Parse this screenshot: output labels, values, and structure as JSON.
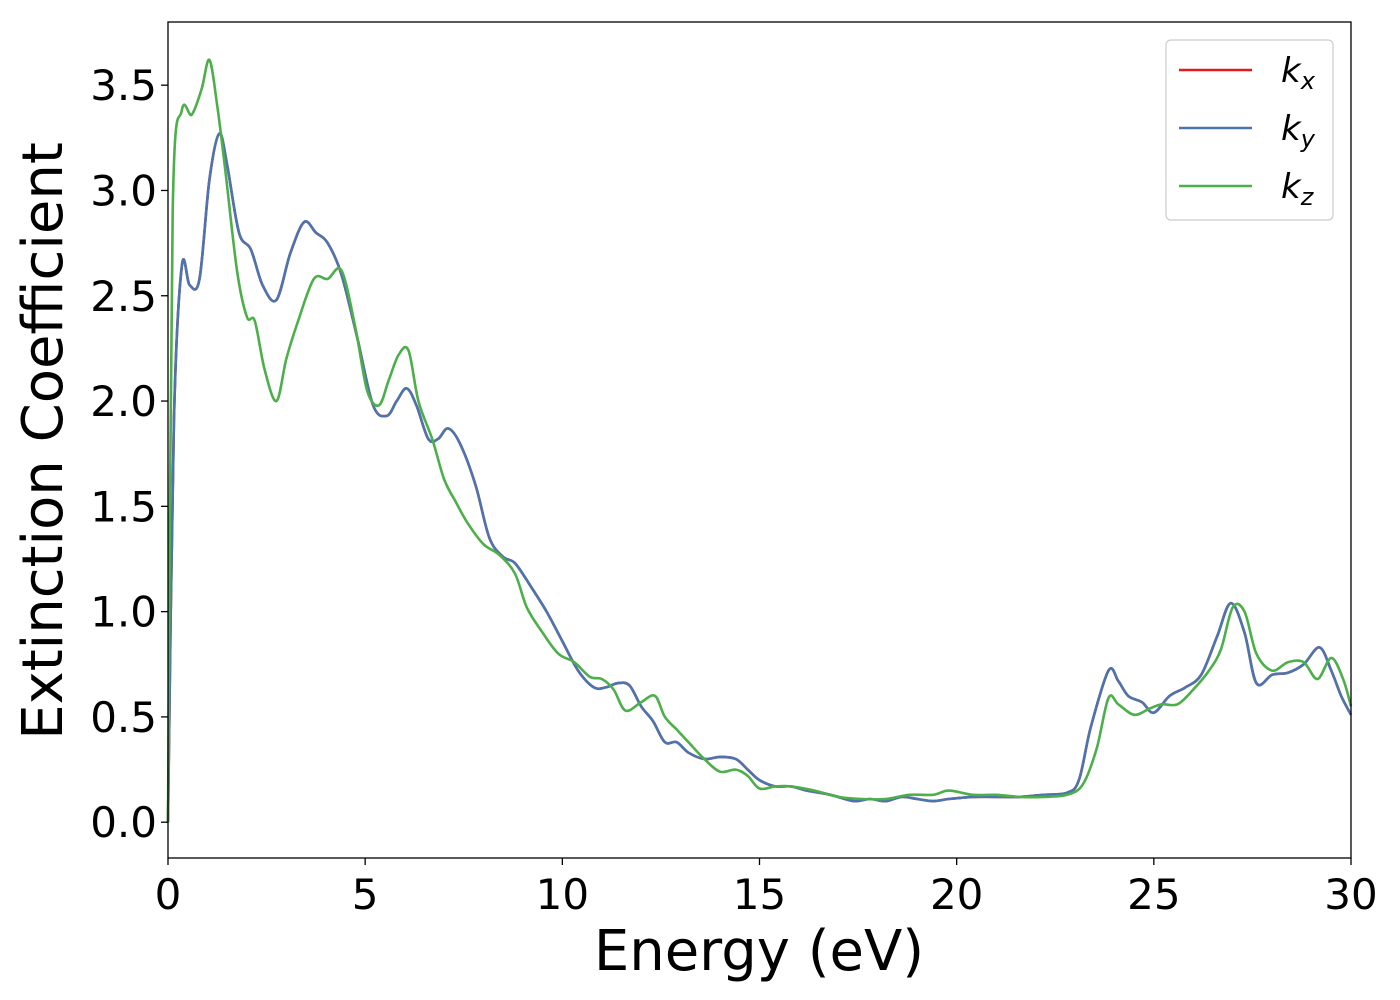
{
  "chart_data": {
    "type": "line",
    "title": "",
    "xlabel": "Energy (eV)",
    "ylabel": "Extinction Coefficient",
    "xlim": [
      0,
      30
    ],
    "ylim": [
      -0.17,
      3.8
    ],
    "xticks": [
      0,
      5,
      10,
      15,
      20,
      25,
      30
    ],
    "xtick_labels": [
      "0",
      "5",
      "10",
      "15",
      "20",
      "25",
      "30"
    ],
    "yticks": [
      0.0,
      0.5,
      1.0,
      1.5,
      2.0,
      2.5,
      3.0,
      3.5
    ],
    "ytick_labels": [
      "0.0",
      "0.5",
      "1.0",
      "1.5",
      "2.0",
      "2.5",
      "3.0",
      "3.5"
    ],
    "grid": false,
    "legend_position": "top-right",
    "series": [
      {
        "name": "k_x",
        "symbol": "k",
        "subscript": "x",
        "color": "#e41a1c",
        "x": [
          0,
          0.15,
          0.35,
          0.55,
          0.8,
          1.05,
          1.3,
          1.5,
          1.8,
          2.1,
          2.4,
          2.75,
          3.1,
          3.45,
          3.75,
          4.05,
          4.4,
          4.8,
          5.2,
          5.55,
          5.8,
          6.05,
          6.3,
          6.6,
          6.85,
          7.1,
          7.4,
          7.8,
          8.15,
          8.5,
          8.8,
          9.2,
          9.6,
          10,
          10.4,
          10.8,
          11.1,
          11.4,
          11.7,
          12,
          12.3,
          12.6,
          12.9,
          13.2,
          13.6,
          14,
          14.4,
          14.7,
          15,
          15.4,
          15.8,
          16.2,
          16.8,
          17.4,
          17.8,
          18.2,
          18.6,
          19,
          19.4,
          19.8,
          20.4,
          21,
          21.6,
          22.2,
          22.8,
          23.1,
          23.4,
          23.85,
          24.1,
          24.35,
          24.7,
          25,
          25.4,
          25.8,
          26.2,
          26.6,
          26.95,
          27.3,
          27.6,
          28,
          28.4,
          28.8,
          29.2,
          29.5,
          29.75,
          30
        ],
        "values": [
          0,
          1.9,
          2.64,
          2.55,
          2.58,
          3.05,
          3.27,
          3.12,
          2.8,
          2.72,
          2.55,
          2.48,
          2.7,
          2.85,
          2.8,
          2.75,
          2.6,
          2.3,
          1.98,
          1.93,
          2.0,
          2.06,
          1.98,
          1.82,
          1.82,
          1.87,
          1.8,
          1.6,
          1.35,
          1.26,
          1.23,
          1.12,
          1.0,
          0.86,
          0.72,
          0.64,
          0.64,
          0.66,
          0.65,
          0.55,
          0.48,
          0.38,
          0.38,
          0.33,
          0.3,
          0.31,
          0.3,
          0.25,
          0.2,
          0.17,
          0.17,
          0.15,
          0.13,
          0.1,
          0.11,
          0.1,
          0.12,
          0.11,
          0.1,
          0.11,
          0.12,
          0.12,
          0.12,
          0.13,
          0.14,
          0.2,
          0.45,
          0.72,
          0.67,
          0.6,
          0.57,
          0.52,
          0.6,
          0.64,
          0.7,
          0.88,
          1.04,
          0.9,
          0.66,
          0.7,
          0.71,
          0.75,
          0.83,
          0.72,
          0.6,
          0.51
        ]
      },
      {
        "name": "k_y",
        "symbol": "k",
        "subscript": "y",
        "color": "#4a75b0",
        "x": [
          0,
          0.15,
          0.35,
          0.55,
          0.8,
          1.05,
          1.3,
          1.5,
          1.8,
          2.1,
          2.4,
          2.75,
          3.1,
          3.45,
          3.75,
          4.05,
          4.4,
          4.8,
          5.2,
          5.55,
          5.8,
          6.05,
          6.3,
          6.6,
          6.85,
          7.1,
          7.4,
          7.8,
          8.15,
          8.5,
          8.8,
          9.2,
          9.6,
          10,
          10.4,
          10.8,
          11.1,
          11.4,
          11.7,
          12,
          12.3,
          12.6,
          12.9,
          13.2,
          13.6,
          14,
          14.4,
          14.7,
          15,
          15.4,
          15.8,
          16.2,
          16.8,
          17.4,
          17.8,
          18.2,
          18.6,
          19,
          19.4,
          19.8,
          20.4,
          21,
          21.6,
          22.2,
          22.8,
          23.1,
          23.4,
          23.85,
          24.1,
          24.35,
          24.7,
          25,
          25.4,
          25.8,
          26.2,
          26.6,
          26.95,
          27.3,
          27.6,
          28,
          28.4,
          28.8,
          29.2,
          29.5,
          29.75,
          30
        ],
        "values": [
          0,
          1.9,
          2.64,
          2.55,
          2.58,
          3.05,
          3.27,
          3.12,
          2.8,
          2.72,
          2.55,
          2.48,
          2.7,
          2.85,
          2.8,
          2.75,
          2.6,
          2.3,
          1.98,
          1.93,
          2.0,
          2.06,
          1.98,
          1.82,
          1.82,
          1.87,
          1.8,
          1.6,
          1.35,
          1.26,
          1.23,
          1.12,
          1.0,
          0.86,
          0.72,
          0.64,
          0.64,
          0.66,
          0.65,
          0.55,
          0.48,
          0.38,
          0.38,
          0.33,
          0.3,
          0.31,
          0.3,
          0.25,
          0.2,
          0.17,
          0.17,
          0.15,
          0.13,
          0.1,
          0.11,
          0.1,
          0.12,
          0.11,
          0.1,
          0.11,
          0.12,
          0.12,
          0.12,
          0.13,
          0.14,
          0.2,
          0.45,
          0.72,
          0.67,
          0.6,
          0.57,
          0.52,
          0.6,
          0.64,
          0.7,
          0.88,
          1.04,
          0.9,
          0.66,
          0.7,
          0.71,
          0.75,
          0.83,
          0.72,
          0.6,
          0.51
        ]
      },
      {
        "name": "k_z",
        "symbol": "k",
        "subscript": "z",
        "color": "#4daf4a",
        "x": [
          0,
          0.12,
          0.35,
          0.6,
          0.85,
          1.05,
          1.25,
          1.45,
          1.75,
          2.0,
          2.2,
          2.45,
          2.75,
          3.0,
          3.3,
          3.7,
          4.05,
          4.4,
          4.75,
          5.05,
          5.35,
          5.6,
          5.85,
          6.1,
          6.35,
          6.7,
          7.0,
          7.3,
          7.6,
          8.0,
          8.4,
          8.8,
          9.1,
          9.5,
          9.9,
          10.3,
          10.7,
          11.0,
          11.3,
          11.6,
          12.0,
          12.35,
          12.6,
          12.9,
          13.2,
          13.6,
          14.0,
          14.4,
          14.7,
          15.0,
          15.4,
          15.8,
          16.4,
          17.0,
          17.6,
          18.2,
          18.8,
          19.4,
          19.8,
          20.4,
          21.0,
          21.6,
          22.2,
          22.8,
          23.2,
          23.55,
          23.85,
          24.1,
          24.5,
          24.9,
          25.2,
          25.6,
          26.0,
          26.4,
          26.7,
          27.0,
          27.3,
          27.6,
          28.0,
          28.4,
          28.8,
          29.15,
          29.5,
          29.8,
          30
        ],
        "values": [
          0,
          2.9,
          3.38,
          3.36,
          3.48,
          3.62,
          3.4,
          3.1,
          2.62,
          2.4,
          2.38,
          2.15,
          2.0,
          2.2,
          2.38,
          2.58,
          2.58,
          2.62,
          2.35,
          2.05,
          1.98,
          2.1,
          2.22,
          2.24,
          2.0,
          1.82,
          1.63,
          1.52,
          1.42,
          1.32,
          1.27,
          1.18,
          1.02,
          0.9,
          0.8,
          0.76,
          0.69,
          0.68,
          0.63,
          0.53,
          0.57,
          0.6,
          0.5,
          0.44,
          0.38,
          0.3,
          0.24,
          0.25,
          0.22,
          0.16,
          0.17,
          0.17,
          0.15,
          0.12,
          0.11,
          0.11,
          0.13,
          0.13,
          0.15,
          0.13,
          0.13,
          0.12,
          0.12,
          0.13,
          0.18,
          0.35,
          0.59,
          0.56,
          0.51,
          0.54,
          0.56,
          0.56,
          0.63,
          0.72,
          0.82,
          1.02,
          1.0,
          0.8,
          0.72,
          0.76,
          0.76,
          0.68,
          0.78,
          0.68,
          0.55
        ]
      }
    ]
  }
}
